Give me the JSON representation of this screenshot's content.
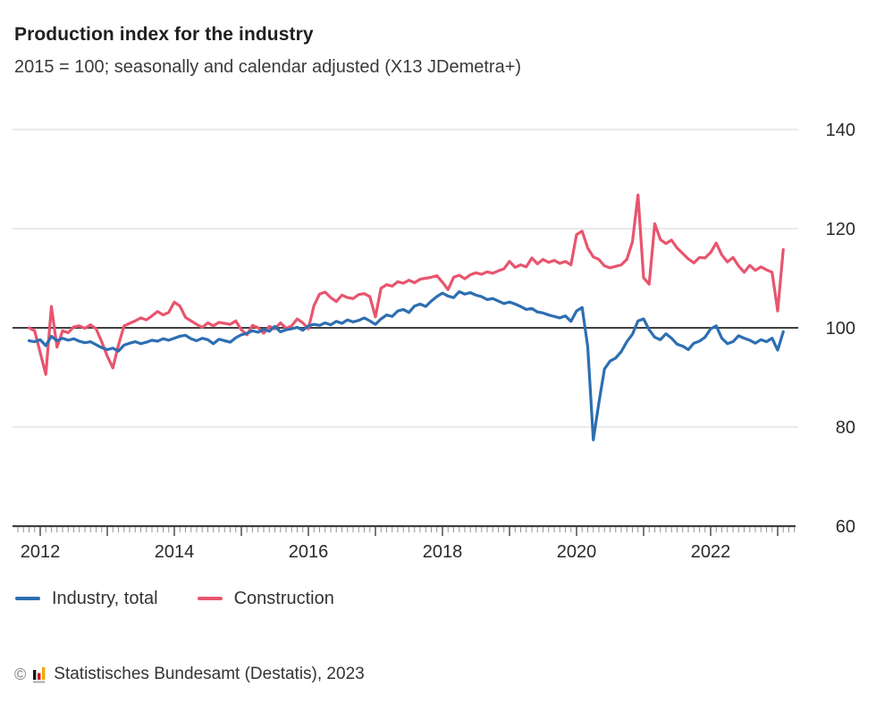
{
  "header": {
    "title": "Production index for the industry",
    "subtitle": "2015 = 100; seasonally and calendar adjusted (X13 JDemetra+)"
  },
  "chart_data": {
    "type": "line",
    "title": "Production index for the industry",
    "subtitle": "2015 = 100; seasonally and calendar adjusted (X13 JDemetra+)",
    "x_frequency": "monthly",
    "x_start": "2011-11",
    "x_end": "2023-02",
    "xticks": [
      2012,
      2014,
      2016,
      2018,
      2020,
      2022
    ],
    "yticks": [
      60,
      80,
      100,
      120,
      140
    ],
    "ylim": [
      60,
      143
    ],
    "baseline_value": 100,
    "grid": "horizontal-light",
    "legend_position": "bottom-left",
    "colors": {
      "grid": "#dedede",
      "baseline": "#3f3f3f",
      "axis": "#3f3f3f",
      "tick_minor": "#949494",
      "tick_major": "#5a5a5a",
      "tick_label": "#2a2a2a"
    },
    "series": [
      {
        "name": "Industry, total",
        "color": "#2d6eb2",
        "values": [
          97.4,
          97.2,
          97.6,
          96.4,
          98.3,
          97.4,
          97.9,
          97.5,
          97.8,
          97.3,
          97.0,
          97.2,
          96.6,
          96.0,
          95.6,
          95.9,
          95.3,
          96.5,
          96.9,
          97.2,
          96.8,
          97.1,
          97.5,
          97.3,
          97.8,
          97.5,
          97.9,
          98.3,
          98.5,
          97.8,
          97.4,
          97.9,
          97.6,
          96.8,
          97.7,
          97.4,
          97.1,
          98.0,
          98.6,
          98.9,
          99.4,
          99.1,
          99.7,
          99.3,
          100.3,
          99.2,
          99.6,
          99.8,
          100.1,
          99.5,
          100.4,
          100.7,
          100.5,
          101.0,
          100.6,
          101.3,
          100.9,
          101.6,
          101.2,
          101.5,
          102.0,
          101.4,
          100.7,
          101.8,
          102.6,
          102.3,
          103.4,
          103.7,
          103.1,
          104.4,
          104.8,
          104.3,
          105.4,
          106.3,
          107.0,
          106.4,
          106.1,
          107.3,
          106.8,
          107.1,
          106.6,
          106.3,
          105.7,
          105.9,
          105.4,
          104.9,
          105.2,
          104.8,
          104.3,
          103.7,
          103.9,
          103.2,
          103.0,
          102.6,
          102.3,
          102.0,
          102.4,
          101.3,
          103.4,
          104.1,
          96.2,
          77.4,
          84.9,
          91.7,
          93.3,
          93.9,
          95.2,
          97.2,
          98.7,
          101.4,
          101.8,
          99.6,
          98.1,
          97.6,
          98.8,
          97.9,
          96.7,
          96.3,
          95.6,
          96.9,
          97.3,
          98.1,
          99.8,
          100.4,
          97.9,
          96.8,
          97.2,
          98.4,
          97.9,
          97.5,
          96.9,
          97.6,
          97.2,
          97.9,
          95.5,
          99.2
        ]
      },
      {
        "name": "Construction",
        "color": "#e8556e",
        "values": [
          100.0,
          99.4,
          95.0,
          90.6,
          104.3,
          96.1,
          99.4,
          99.0,
          100.2,
          100.4,
          99.9,
          100.6,
          99.8,
          97.2,
          94.3,
          91.9,
          96.5,
          100.4,
          100.9,
          101.4,
          102.0,
          101.6,
          102.4,
          103.3,
          102.6,
          103.1,
          105.2,
          104.4,
          102.1,
          101.4,
          100.7,
          100.1,
          101.0,
          100.4,
          101.1,
          100.9,
          100.7,
          101.4,
          99.6,
          98.6,
          100.5,
          100.0,
          98.9,
          100.3,
          99.8,
          101.0,
          99.9,
          100.4,
          101.8,
          101.0,
          99.8,
          104.5,
          106.8,
          107.2,
          106.1,
          105.3,
          106.6,
          106.1,
          105.9,
          106.7,
          106.9,
          106.3,
          102.2,
          108.0,
          108.7,
          108.4,
          109.3,
          109.0,
          109.6,
          109.1,
          109.8,
          110.0,
          110.2,
          110.5,
          109.2,
          107.7,
          110.2,
          110.6,
          109.9,
          110.7,
          111.1,
          110.8,
          111.3,
          111.0,
          111.5,
          111.9,
          113.4,
          112.2,
          112.7,
          112.3,
          114.1,
          112.9,
          113.8,
          113.2,
          113.6,
          113.0,
          113.4,
          112.7,
          118.8,
          119.5,
          116.1,
          114.3,
          113.8,
          112.5,
          112.1,
          112.4,
          112.7,
          113.8,
          117.3,
          126.8,
          110.1,
          108.8,
          121.0,
          117.8,
          117.0,
          117.7,
          116.1,
          115.0,
          113.9,
          113.1,
          114.2,
          114.1,
          115.2,
          117.1,
          114.7,
          113.3,
          114.2,
          112.5,
          111.2,
          112.6,
          111.6,
          112.3,
          111.7,
          111.2,
          103.4,
          115.8
        ]
      }
    ]
  },
  "footer": {
    "copyright": "©",
    "logo_icon": "destatis-bar-chart-icon",
    "logo_colors": {
      "black": "#1a1a1a",
      "red": "#d40f14",
      "gold": "#f5a800",
      "base": "#b5b5b5"
    },
    "source": "Statistisches Bundesamt (Destatis), 2023"
  }
}
